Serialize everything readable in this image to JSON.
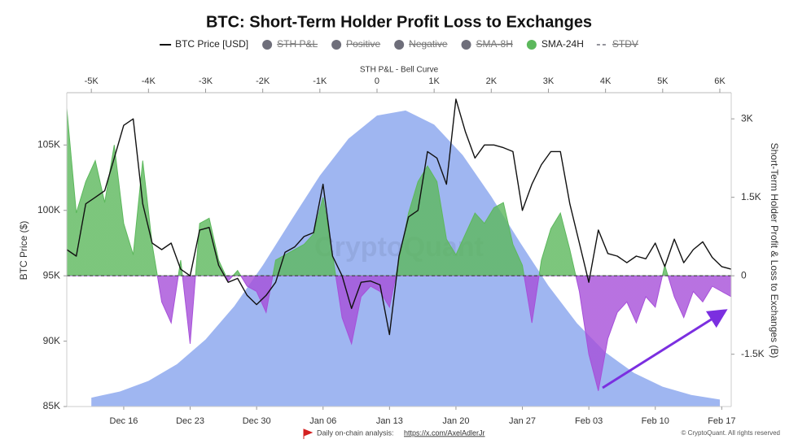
{
  "chart_data": {
    "type": "combo",
    "title": "BTC: Short-Term Holder Profit Loss to Exchanges",
    "y_label": "BTC Price ($)",
    "y2_label": "Short-Term Holder Profit & Loss to Exchanges (B)",
    "x2_label": "STH P&L - Bell Curve",
    "watermark": "CryptoQuant",
    "x": [
      "Dec 10",
      "Dec 11",
      "Dec 12",
      "Dec 13",
      "Dec 14",
      "Dec 15",
      "Dec 16",
      "Dec 17",
      "Dec 18",
      "Dec 19",
      "Dec 20",
      "Dec 21",
      "Dec 22",
      "Dec 23",
      "Dec 24",
      "Dec 25",
      "Dec 26",
      "Dec 27",
      "Dec 28",
      "Dec 29",
      "Dec 30",
      "Dec 31",
      "Jan 01",
      "Jan 02",
      "Jan 03",
      "Jan 04",
      "Jan 05",
      "Jan 06",
      "Jan 07",
      "Jan 08",
      "Jan 09",
      "Jan 10",
      "Jan 11",
      "Jan 12",
      "Jan 13",
      "Jan 14",
      "Jan 15",
      "Jan 16",
      "Jan 17",
      "Jan 18",
      "Jan 19",
      "Jan 20",
      "Jan 21",
      "Jan 22",
      "Jan 23",
      "Jan 24",
      "Jan 25",
      "Jan 26",
      "Jan 27",
      "Jan 28",
      "Jan 29",
      "Jan 30",
      "Jan 31",
      "Feb 01",
      "Feb 02",
      "Feb 03",
      "Feb 04",
      "Feb 05",
      "Feb 06",
      "Feb 07",
      "Feb 08",
      "Feb 09",
      "Feb 10",
      "Feb 11",
      "Feb 12",
      "Feb 13",
      "Feb 14",
      "Feb 15",
      "Feb 16",
      "Feb 17",
      "Feb 18"
    ],
    "xticks": [
      "Dec 16",
      "Dec 23",
      "Dec 30",
      "Jan 06",
      "Jan 13",
      "Jan 20",
      "Jan 27",
      "Feb 03",
      "Feb 10",
      "Feb 17"
    ],
    "ylim": [
      85000,
      109000
    ],
    "yticks": [
      {
        "value": 85000,
        "label": "85K"
      },
      {
        "value": 90000,
        "label": "90K"
      },
      {
        "value": 95000,
        "label": "95K"
      },
      {
        "value": 100000,
        "label": "100K"
      },
      {
        "value": 105000,
        "label": "105K"
      }
    ],
    "y2lim": [
      -2500,
      3500
    ],
    "y2ticks": [
      {
        "value": -1500,
        "label": "-1.5K"
      },
      0,
      {
        "value": 1500,
        "label": "1.5K"
      },
      {
        "value": 3000,
        "label": "3K"
      }
    ],
    "x2lim": [
      -5430,
      6200
    ],
    "x2ticks": [
      {
        "value": -5000,
        "label": "-5K"
      },
      {
        "value": -4000,
        "label": "-4K"
      },
      {
        "value": -3000,
        "label": "-3K"
      },
      {
        "value": -2000,
        "label": "-2K"
      },
      {
        "value": -1000,
        "label": "-1K"
      },
      0,
      {
        "value": 1000,
        "label": "1K"
      },
      {
        "value": 2000,
        "label": "2K"
      },
      {
        "value": 3000,
        "label": "3K"
      },
      {
        "value": 4000,
        "label": "4K"
      },
      {
        "value": 5000,
        "label": "5K"
      },
      {
        "value": 6000,
        "label": "6K"
      }
    ],
    "series": [
      {
        "name": "BTC Price [USD]",
        "type": "line",
        "symbol": "line",
        "color": "#111111",
        "values": [
          97000,
          96500,
          100500,
          101000,
          101500,
          104000,
          106500,
          107000,
          100500,
          97500,
          97000,
          97500,
          95500,
          95000,
          98500,
          98700,
          95800,
          94500,
          94800,
          93500,
          92800,
          93500,
          94500,
          96800,
          97200,
          98000,
          98300,
          102000,
          96500,
          95000,
          92500,
          94500,
          94600,
          94300,
          90500,
          96500,
          99500,
          100000,
          104500,
          104000,
          102000,
          108500,
          106000,
          104000,
          105000,
          105000,
          104800,
          104500,
          100000,
          102000,
          103500,
          104500,
          104500,
          100500,
          97500,
          94500,
          98500,
          96700,
          96500,
          96000,
          96500,
          96300,
          97500,
          95700,
          97800,
          96000,
          97000,
          97600,
          96400,
          95700,
          95500
        ]
      },
      {
        "name": "STH P&L",
        "hidden": true,
        "symbol": "dot",
        "color": "#6e6e7a"
      },
      {
        "name": "Positive",
        "hidden": true,
        "symbol": "dot",
        "color": "#6e6e7a"
      },
      {
        "name": "Negative",
        "hidden": true,
        "symbol": "dot",
        "color": "#6e6e7a"
      },
      {
        "name": "SMA-8H",
        "hidden": true,
        "symbol": "dot",
        "color": "#6e6e7a"
      },
      {
        "name": "SMA-24H",
        "type": "area",
        "axis": "y2",
        "symbol": "dot",
        "color": "#5cb85c",
        "negative_color": "#a64fd9",
        "values": [
          3200,
          1200,
          1800,
          2200,
          1400,
          2500,
          1000,
          400,
          2200,
          600,
          -500,
          -900,
          300,
          -1300,
          1000,
          1100,
          300,
          -100,
          100,
          -200,
          -300,
          -700,
          300,
          400,
          500,
          600,
          800,
          1500,
          400,
          -800,
          -1300,
          -400,
          -200,
          -300,
          -600,
          300,
          1200,
          1800,
          2100,
          1800,
          700,
          400,
          800,
          1200,
          1000,
          1300,
          1400,
          600,
          200,
          -900,
          300,
          900,
          1200,
          500,
          -300,
          -1500,
          -2200,
          -1200,
          -700,
          -500,
          -900,
          -400,
          -600,
          200,
          -400,
          -800,
          -300,
          -500,
          -200,
          -300,
          -400
        ]
      },
      {
        "name": "STDV",
        "hidden": true,
        "symbol": "dash",
        "color": "#555555"
      }
    ],
    "bell_curve": {
      "type": "area",
      "axis": "y2",
      "x_axis": "x2",
      "color": "#8ea9ef",
      "x": [
        -5000,
        -4500,
        -4000,
        -3500,
        -3000,
        -2500,
        -2000,
        -1500,
        -1000,
        -500,
        0,
        500,
        1000,
        1500,
        2000,
        2500,
        3000,
        3500,
        4000,
        4500,
        5000,
        5500,
        6000
      ],
      "values": [
        -2330,
        -2212,
        -2010,
        -1690,
        -1218,
        -583,
        198,
        1064,
        1914,
        2620,
        3063,
        3159,
        2889,
        2307,
        1516,
        644,
        -192,
        -908,
        -1464,
        -1860,
        -2120,
        -2277,
        -2366
      ]
    }
  },
  "footer": {
    "note": "Daily on-chain analysis:",
    "link": "https://x.com/AxelAdlerJr",
    "copyright": "© CryptoQuant. All rights reserved"
  }
}
